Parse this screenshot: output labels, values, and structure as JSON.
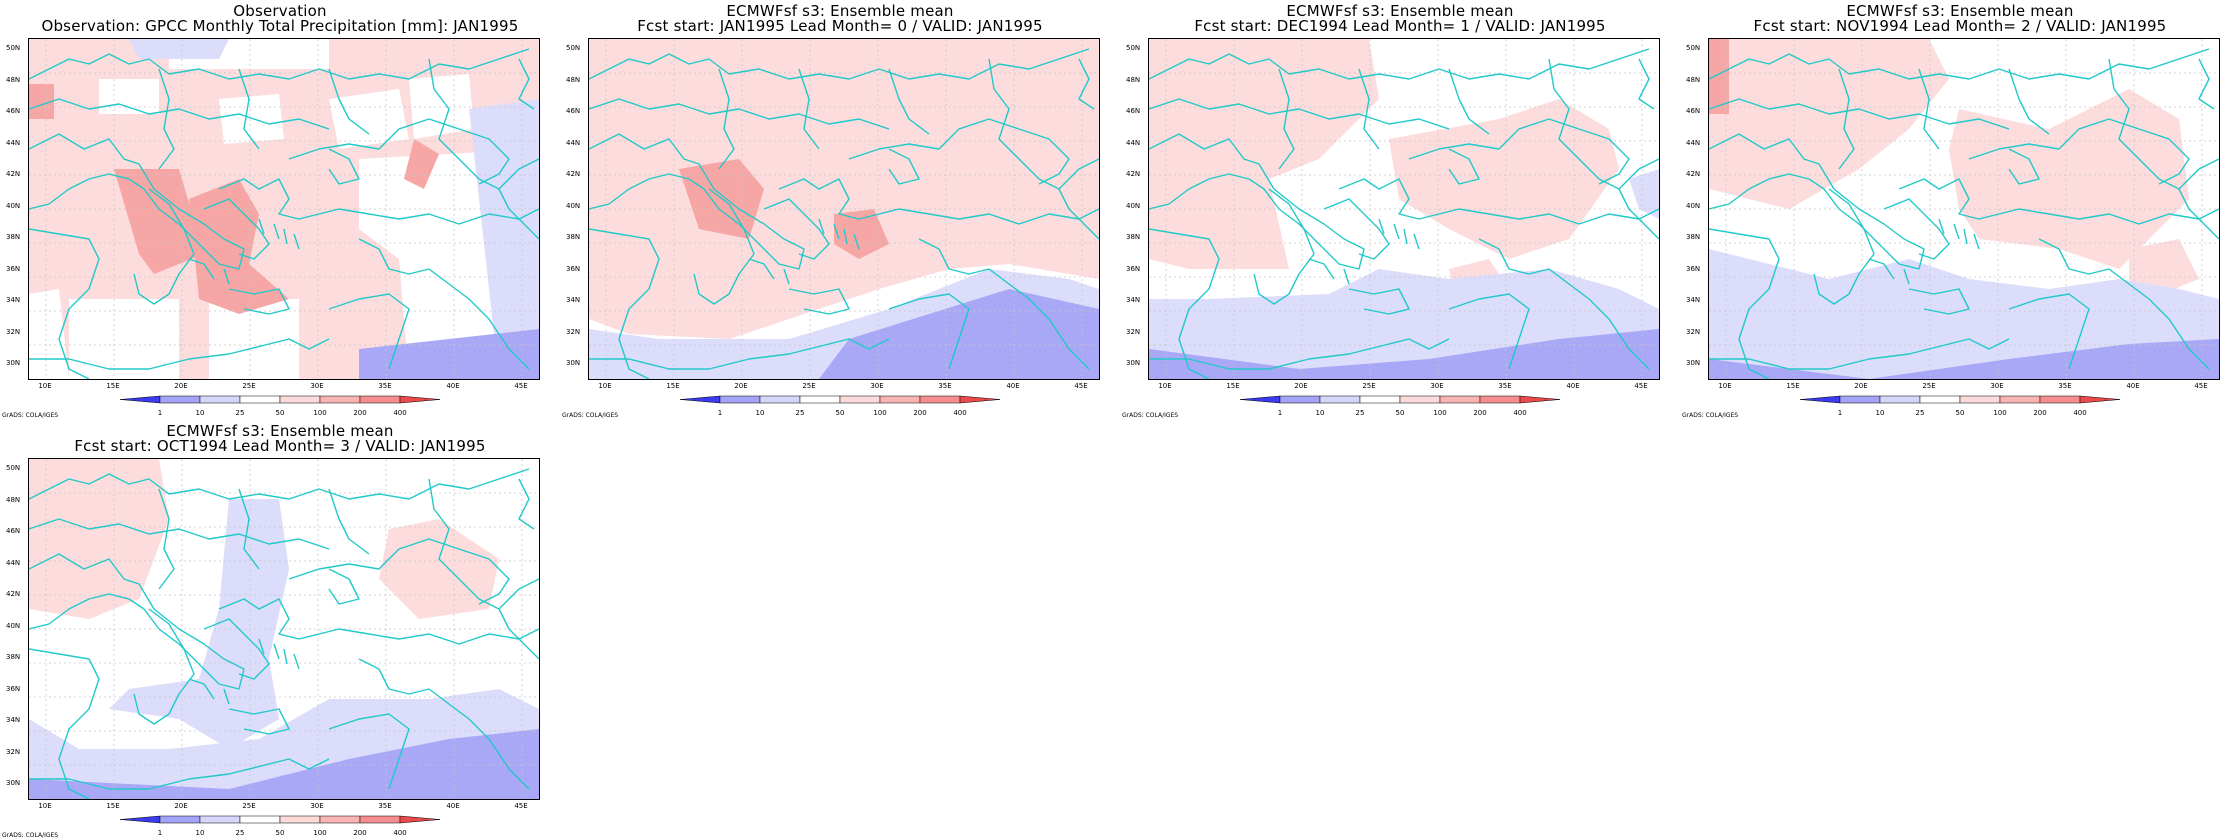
{
  "panels": [
    {
      "title1": "Observation",
      "title2": "Observation: GPCC Monthly Total Precipitation [mm]: JAN1995"
    },
    {
      "title1": "ECMWFsf s3: Ensemble mean",
      "title2": "Fcst start: JAN1995  Lead Month= 0 / VALID: JAN1995"
    },
    {
      "title1": "ECMWFsf s3: Ensemble mean",
      "title2": "Fcst start: DEC1994  Lead Month= 1 / VALID: JAN1995"
    },
    {
      "title1": "ECMWFsf s3: Ensemble mean",
      "title2": "Fcst start: NOV1994  Lead Month= 2 / VALID: JAN1995"
    },
    {
      "title1": "ECMWFsf s3: Ensemble mean",
      "title2": "Fcst start: OCT1994  Lead Month= 3 / VALID: JAN1995"
    }
  ],
  "axes": {
    "lat_labels": [
      "50N",
      "48N",
      "46N",
      "44N",
      "42N",
      "40N",
      "38N",
      "36N",
      "34N",
      "32N",
      "30N"
    ],
    "lon_labels": [
      "10E",
      "15E",
      "20E",
      "25E",
      "30E",
      "35E",
      "40E",
      "45E"
    ]
  },
  "colorbar": {
    "labels": [
      "1",
      "10",
      "25",
      "50",
      "100",
      "200",
      "400"
    ],
    "colors": [
      "#3a3aee",
      "#a3a3f7",
      "#d6d6fb",
      "#ffffff",
      "#fcdada",
      "#f9b4b4",
      "#f58f8f",
      "#ea4a4a"
    ]
  },
  "credit": "GrADS: COLA/IGES",
  "palette": {
    "coast": "#22c9c9",
    "grid": "#c8c8c8",
    "light_blue": "#dcdcfb",
    "mid_blue": "#a8a8f6",
    "light_red": "#fcdcdc",
    "mid_red": "#f7a6a6"
  }
}
